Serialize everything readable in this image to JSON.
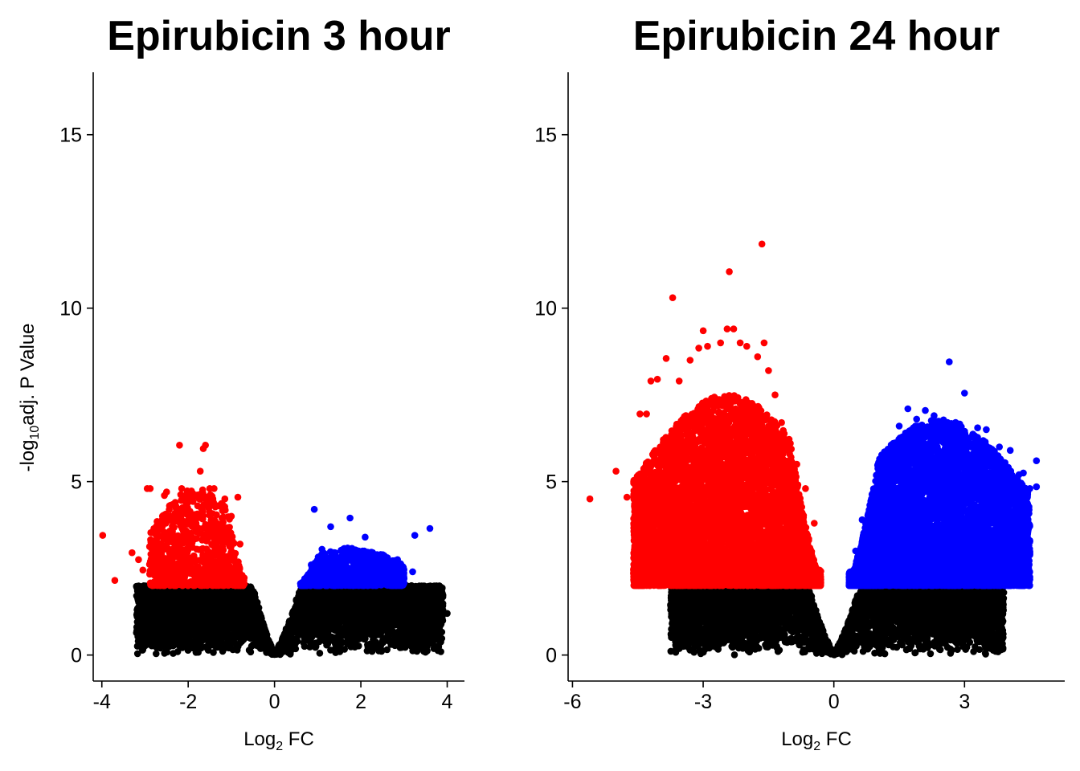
{
  "chart_data": [
    {
      "type": "scatter",
      "subtype": "volcano",
      "title": "Epirubicin 3 hour",
      "xlabel_parts": [
        "Log",
        "2",
        " FC"
      ],
      "ylabel_parts": [
        "-log",
        "10",
        "adj. P Value"
      ],
      "xlim": [
        -4.2,
        4.4
      ],
      "ylim": [
        -0.75,
        16.8
      ],
      "x_ticks": [
        -4,
        -2,
        0,
        2,
        4
      ],
      "x_tick_labels": [
        "-4",
        "-2",
        "0",
        "2",
        "4"
      ],
      "y_ticks": [
        0,
        5,
        10,
        15
      ],
      "y_tick_labels": [
        "0",
        "5",
        "10",
        "15"
      ],
      "significance_threshold_y": 2.0,
      "down_region": {
        "x_range": [
          -2.9,
          -0.7
        ],
        "y_range": [
          2.0,
          4.8
        ]
      },
      "up_region": {
        "x_range": [
          0.6,
          3.0
        ],
        "y_range": [
          2.0,
          3.1
        ]
      },
      "series": [
        {
          "key": "down",
          "color": "#ff0000",
          "points": [
            [
              -3.98,
              3.45
            ],
            [
              -3.7,
              2.15
            ],
            [
              -3.3,
              2.95
            ],
            [
              -3.15,
              2.75
            ],
            [
              -3.05,
              2.45
            ],
            [
              -2.95,
              4.8
            ],
            [
              -2.88,
              4.8
            ],
            [
              -2.85,
              2.6
            ],
            [
              -2.75,
              3.2
            ],
            [
              -2.6,
              3.7
            ],
            [
              -2.55,
              4.6
            ],
            [
              -2.5,
              4.7
            ],
            [
              -2.4,
              3.9
            ],
            [
              -2.3,
              4.4
            ],
            [
              -2.2,
              6.05
            ],
            [
              -2.15,
              4.8
            ],
            [
              -2.05,
              4.3
            ],
            [
              -1.95,
              3.8
            ],
            [
              -1.85,
              4.05
            ],
            [
              -1.72,
              5.3
            ],
            [
              -1.65,
              5.95
            ],
            [
              -1.6,
              6.05
            ],
            [
              -1.58,
              4.4
            ],
            [
              -1.5,
              4.8
            ],
            [
              -1.4,
              4.8
            ],
            [
              -1.3,
              4.3
            ],
            [
              -1.22,
              3.95
            ],
            [
              -1.15,
              4.5
            ],
            [
              -1.0,
              4.0
            ],
            [
              -0.85,
              4.55
            ],
            [
              -0.8,
              3.2
            ],
            [
              -0.75,
              2.3
            ]
          ]
        },
        {
          "key": "up",
          "color": "#0000ff",
          "points": [
            [
              0.7,
              2.2
            ],
            [
              0.85,
              2.6
            ],
            [
              0.92,
              4.2
            ],
            [
              1.05,
              2.8
            ],
            [
              1.1,
              3.05
            ],
            [
              1.3,
              3.7
            ],
            [
              1.45,
              2.6
            ],
            [
              1.55,
              2.4
            ],
            [
              1.75,
              3.95
            ],
            [
              1.9,
              2.6
            ],
            [
              2.1,
              3.4
            ],
            [
              2.25,
              2.2
            ],
            [
              2.5,
              2.5
            ],
            [
              2.75,
              2.3
            ],
            [
              2.85,
              2.75
            ],
            [
              3.2,
              2.4
            ],
            [
              3.25,
              3.45
            ],
            [
              3.6,
              3.65
            ]
          ]
        },
        {
          "key": "ns",
          "color": "#000000",
          "points": [
            [
              -3.15,
              1.9
            ],
            [
              -3.0,
              1.75
            ],
            [
              -2.9,
              1.8
            ],
            [
              -2.4,
              0.5
            ],
            [
              -2.0,
              0.25
            ],
            [
              -1.7,
              0.2
            ],
            [
              3.3,
              1.7
            ],
            [
              3.45,
              1.55
            ],
            [
              3.55,
              1.45
            ],
            [
              3.6,
              1.25
            ],
            [
              3.75,
              1.45
            ],
            [
              3.9,
              1.3
            ],
            [
              4.0,
              1.2
            ],
            [
              3.2,
              1.2
            ],
            [
              3.0,
              1.05
            ]
          ]
        }
      ],
      "ns_envelope": {
        "x_min": -3.2,
        "x_max": 3.9,
        "y_max": 2.0
      }
    },
    {
      "type": "scatter",
      "subtype": "volcano",
      "title": "Epirubicin 24 hour",
      "xlabel_parts": [
        "Log",
        "2",
        " FC"
      ],
      "ylabel_parts": [],
      "xlim": [
        -6.1,
        5.3
      ],
      "ylim": [
        -0.75,
        16.8
      ],
      "x_ticks": [
        -6,
        -3,
        0,
        3
      ],
      "x_tick_labels": [
        "-6",
        "-3",
        "0",
        "3"
      ],
      "y_ticks": [
        0,
        5,
        10,
        15
      ],
      "y_tick_labels": [
        "0",
        "5",
        "10",
        "15"
      ],
      "significance_threshold_y": 2.0,
      "down_region": {
        "x_range": [
          -4.6,
          -0.3
        ],
        "y_range": [
          2.0,
          7.5
        ]
      },
      "up_region": {
        "x_range": [
          0.35,
          4.5
        ],
        "y_range": [
          2.0,
          6.8
        ]
      },
      "series": [
        {
          "key": "down",
          "color": "#ff0000",
          "points": [
            [
              -5.6,
              4.5
            ],
            [
              -5.0,
              5.3
            ],
            [
              -4.75,
              4.55
            ],
            [
              -4.5,
              2.45
            ],
            [
              -4.45,
              6.95
            ],
            [
              -4.3,
              6.95
            ],
            [
              -4.2,
              7.9
            ],
            [
              -4.05,
              7.95
            ],
            [
              -3.85,
              8.55
            ],
            [
              -3.7,
              10.3
            ],
            [
              -3.55,
              7.9
            ],
            [
              -3.3,
              8.5
            ],
            [
              -3.1,
              8.85
            ],
            [
              -3.0,
              9.35
            ],
            [
              -2.9,
              8.9
            ],
            [
              -2.6,
              9.0
            ],
            [
              -2.45,
              9.4
            ],
            [
              -2.4,
              11.05
            ],
            [
              -2.3,
              9.4
            ],
            [
              -2.15,
              9.0
            ],
            [
              -2.0,
              8.9
            ],
            [
              -1.75,
              8.6
            ],
            [
              -1.6,
              9.0
            ],
            [
              -1.65,
              11.85
            ],
            [
              -1.5,
              8.2
            ],
            [
              -1.35,
              7.5
            ],
            [
              -1.2,
              6.7
            ],
            [
              -1.0,
              6.1
            ],
            [
              -0.85,
              5.5
            ],
            [
              -0.65,
              4.8
            ],
            [
              -0.45,
              3.8
            ]
          ]
        },
        {
          "key": "up",
          "color": "#0000ff",
          "points": [
            [
              0.5,
              3.0
            ],
            [
              0.65,
              3.9
            ],
            [
              0.8,
              4.1
            ],
            [
              1.0,
              5.0
            ],
            [
              1.2,
              5.7
            ],
            [
              1.5,
              6.6
            ],
            [
              1.7,
              7.1
            ],
            [
              1.9,
              6.8
            ],
            [
              2.1,
              7.05
            ],
            [
              2.3,
              6.9
            ],
            [
              2.6,
              6.6
            ],
            [
              2.65,
              8.45
            ],
            [
              2.8,
              6.5
            ],
            [
              3.0,
              7.55
            ],
            [
              3.3,
              6.55
            ],
            [
              3.5,
              6.5
            ],
            [
              3.8,
              6.0
            ],
            [
              4.05,
              5.9
            ],
            [
              4.25,
              5.2
            ],
            [
              4.35,
              5.25
            ],
            [
              4.5,
              4.8
            ],
            [
              4.65,
              5.6
            ],
            [
              4.65,
              4.85
            ],
            [
              4.1,
              3.5
            ],
            [
              3.85,
              3.0
            ],
            [
              3.6,
              2.5
            ],
            [
              3.7,
              2.9
            ]
          ]
        },
        {
          "key": "ns",
          "color": "#000000",
          "points": [
            [
              -3.7,
              1.75
            ],
            [
              -3.35,
              1.45
            ],
            [
              -3.0,
              1.3
            ],
            [
              -2.65,
              1.05
            ],
            [
              -2.4,
              0.8
            ],
            [
              -1.85,
              0.5
            ],
            [
              3.1,
              1.75
            ],
            [
              3.3,
              1.5
            ],
            [
              3.55,
              1.25
            ],
            [
              3.6,
              1.35
            ],
            [
              3.7,
              1.6
            ],
            [
              3.9,
              1.8
            ],
            [
              3.25,
              1.0
            ],
            [
              2.8,
              0.8
            ]
          ]
        }
      ],
      "ns_envelope": {
        "x_min": -3.75,
        "x_max": 3.9,
        "y_max": 2.0
      }
    }
  ]
}
